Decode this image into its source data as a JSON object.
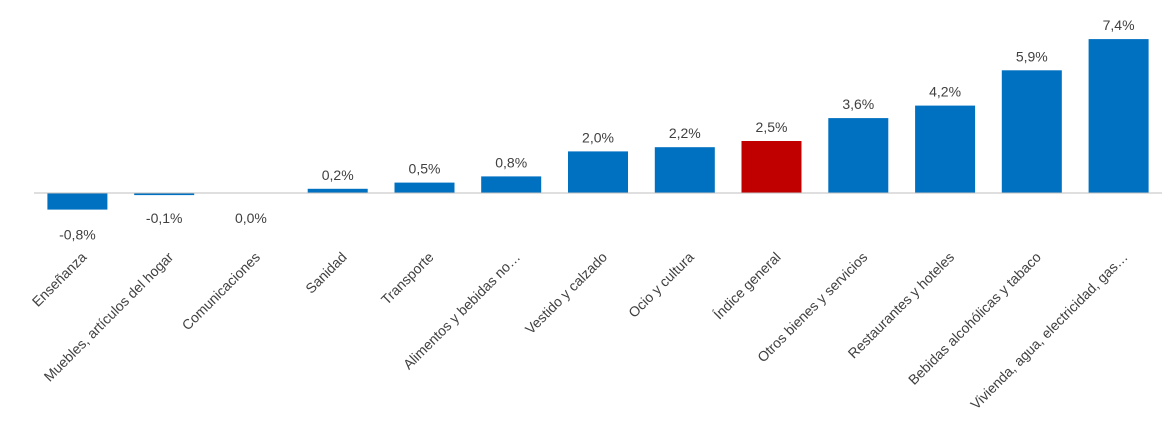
{
  "chart_data": {
    "type": "bar",
    "title": "",
    "xlabel": "",
    "ylabel": "",
    "ylim": [
      -0.8,
      7.4
    ],
    "grid": false,
    "legend": "none",
    "colors": {
      "default": "#0070c0",
      "highlight": "#c00000",
      "axis": "#bfbfbf",
      "text": "#404040"
    },
    "highlight_category": "Índice general",
    "categories": [
      "Enseñanza",
      "Muebles, artículos del hogar",
      "Comunicaciones",
      "Sanidad",
      "Transporte",
      "Alimentos y bebidas no…",
      "Vestido y calzado",
      "Ocio y cultura",
      "Índice general",
      "Otros bienes y servicios",
      "Restaurantes y hoteles",
      "Bebidas alcohólicas y tabaco",
      "Vivienda, agua, electricidad, gas…"
    ],
    "values": [
      -0.8,
      -0.1,
      0.0,
      0.2,
      0.5,
      0.8,
      2.0,
      2.2,
      2.5,
      3.6,
      4.2,
      5.9,
      7.4
    ],
    "data_labels": [
      "-0,8%",
      "-0,1%",
      "0,0%",
      "0,2%",
      "0,5%",
      "0,8%",
      "2,0%",
      "2,2%",
      "2,5%",
      "3,6%",
      "4,2%",
      "5,9%",
      "7,4%"
    ]
  }
}
